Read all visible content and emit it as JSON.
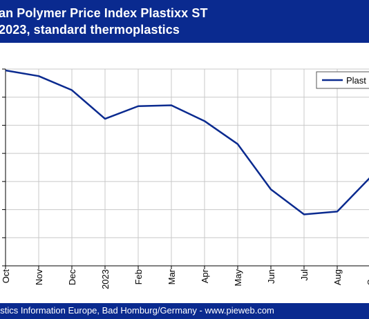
{
  "header": {
    "title_line1": "an Polymer Price Index Plastixx ST",
    "title_line2": "2023, standard thermoplastics"
  },
  "footer": {
    "text": "astics Information Europe, Bad Homburg/Germany - www.pieweb.com"
  },
  "colors": {
    "header_bg": "#0a2a8f",
    "line": "#0a2a8f",
    "grid": "#c8c8c8"
  },
  "chart_data": {
    "type": "line",
    "categories": [
      "Oct",
      "Nov",
      "Dec",
      "2023",
      "Feb",
      "Mar",
      "Apr",
      "May",
      "Jun",
      "Jul",
      "Aug",
      "Sep"
    ],
    "series": [
      {
        "name": "Plast",
        "values": [
          6.95,
          6.75,
          6.25,
          5.23,
          5.68,
          5.71,
          5.15,
          4.33,
          2.72,
          1.83,
          1.93,
          3.15
        ]
      }
    ],
    "ylim": [
      0,
      7
    ],
    "grid": true,
    "legend": "top-right"
  }
}
